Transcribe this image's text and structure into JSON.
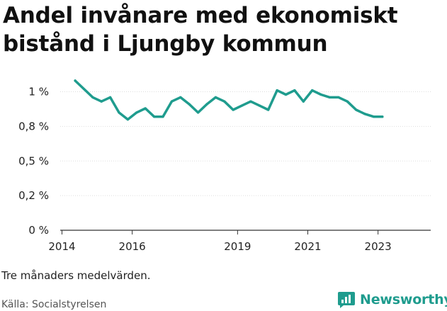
{
  "title": "Andel invånare med ekonomiskt bistånd i Ljungby kommun",
  "note": "Tre månaders medelvärden.",
  "source": "Källa: Socialstyrelsen",
  "brand": {
    "name": "Newsworthy",
    "icon": "newsworthy-logo-icon",
    "color": "#1f9c8e"
  },
  "colors": {
    "line": "#1f9c8e",
    "grid": "#dddddd",
    "axis": "#333333",
    "text": "#222222"
  },
  "chart_data": {
    "type": "line",
    "title": "Andel invånare med ekonomiskt bistånd i Ljungby kommun",
    "xlabel": "",
    "ylabel": "",
    "x_ticks": [
      2014,
      2016,
      2019,
      2021,
      2023
    ],
    "x_tick_labels": [
      "2014",
      "2016",
      "2019",
      "2021",
      "2023"
    ],
    "y_ticks": [
      0,
      0.25,
      0.5,
      0.75,
      1
    ],
    "y_tick_labels": [
      "0 %",
      "0,2 %",
      "0,5 %",
      "0,8 %",
      "1 %"
    ],
    "xlim": [
      2013.95,
      2024.5
    ],
    "ylim": [
      0,
      1.1
    ],
    "grid": "horizontal",
    "series": [
      {
        "x": [
          2014.375,
          2014.625,
          2014.875,
          2015.125,
          2015.375,
          2015.625,
          2015.875,
          2016.125,
          2016.375,
          2016.625,
          2016.875,
          2017.125,
          2017.375,
          2017.625,
          2017.875,
          2018.125,
          2018.375,
          2018.625,
          2018.875,
          2019.125,
          2019.375,
          2019.625,
          2019.875,
          2020.125,
          2020.375,
          2020.625,
          2020.875,
          2021.125,
          2021.375,
          2021.625,
          2021.875,
          2022.125,
          2022.375,
          2022.625,
          2022.875,
          2023.125
        ],
        "y": [
          1.08,
          1.02,
          0.96,
          0.93,
          0.96,
          0.85,
          0.8,
          0.85,
          0.88,
          0.82,
          0.82,
          0.93,
          0.96,
          0.91,
          0.85,
          0.91,
          0.96,
          0.93,
          0.87,
          0.9,
          0.93,
          0.9,
          0.87,
          1.01,
          0.98,
          1.01,
          0.93,
          1.01,
          0.98,
          0.96,
          0.96,
          0.93,
          0.87,
          0.84,
          0.82,
          0.82
        ]
      }
    ]
  }
}
